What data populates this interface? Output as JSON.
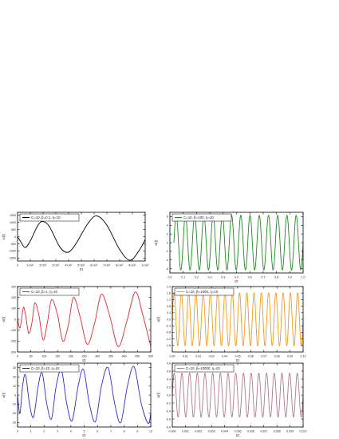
{
  "chart_data": [
    {
      "type": "line",
      "legend": "C=10, β=0.1, η=10",
      "legend_placement": "top-left",
      "xlabel": "t/τ",
      "ylabel": "u(t)",
      "color": "#000000",
      "xlim": [
        0,
        10
      ],
      "ylim": [
        -1700,
        1700
      ],
      "xticks": [
        0,
        1,
        2,
        3,
        4,
        5,
        6,
        7,
        8,
        9,
        10
      ],
      "xtick_labels": [
        "0",
        "1×10⁵",
        "2×10⁵",
        "3×10⁵",
        "4×10⁵",
        "5×10⁵",
        "6×10⁵",
        "7×10⁵",
        "8×10⁵",
        "9×10⁵",
        "1×10⁶"
      ],
      "yticks": [
        -1500,
        -1000,
        -500,
        0,
        500,
        1000,
        1500
      ],
      "ytick_labels": [
        "-1500",
        "-1000",
        "-500",
        "0",
        "500",
        "1000",
        "1500"
      ],
      "points": [
        [
          0,
          0
        ],
        [
          0.25,
          -350
        ],
        [
          0.6,
          -760
        ],
        [
          1.0,
          -300
        ],
        [
          1.6,
          800
        ],
        [
          2.0,
          1050
        ],
        [
          2.5,
          700
        ],
        [
          3.3,
          -700
        ],
        [
          3.9,
          -1100
        ],
        [
          4.5,
          -600
        ],
        [
          5.5,
          900
        ],
        [
          6.2,
          1450
        ],
        [
          7.0,
          800
        ],
        [
          8.0,
          -900
        ],
        [
          8.8,
          -1650
        ],
        [
          9.5,
          -1000
        ],
        [
          10,
          -200
        ]
      ]
    },
    {
      "type": "line",
      "legend": "C=10, β=100, η=10",
      "legend_placement": "top-left",
      "xlabel": "t/τ",
      "ylabel": "u(t)",
      "color": "#1e8a1e",
      "xlim": [
        0,
        1
      ],
      "ylim": [
        -7,
        7
      ],
      "xticks": [
        0,
        0.1,
        0.2,
        0.3,
        0.4,
        0.5,
        0.6,
        0.7,
        0.8,
        0.9,
        1.0
      ],
      "xtick_labels": [
        "0.0",
        "0.1",
        "0.2",
        "0.3",
        "0.4",
        "0.5",
        "0.6",
        "0.7",
        "0.8",
        "0.9",
        "1.0"
      ],
      "yticks": [
        -6,
        -4,
        -2,
        0,
        2,
        4,
        6
      ],
      "ytick_labels": [
        "-6",
        "-4",
        "-2",
        "0",
        "2",
        "4",
        "6"
      ],
      "wave": {
        "start": 0.03,
        "end": 1.0,
        "cycles": 14,
        "amplitude": 6.3
      }
    },
    {
      "type": "line",
      "legend": "C=10, β=1, η=10",
      "legend_placement": "top-left",
      "xlabel": "t/τ",
      "ylabel": "u(t)",
      "color": "#e0262e",
      "xlim": [
        0,
        500
      ],
      "ylim": [
        -300,
        300
      ],
      "xticks": [
        0,
        50,
        100,
        150,
        200,
        250,
        300,
        350,
        400,
        450,
        500
      ],
      "xtick_labels": [
        "0",
        "50",
        "100",
        "150",
        "200",
        "250",
        "300",
        "350",
        "400",
        "450",
        "500"
      ],
      "yticks": [
        -300,
        -200,
        -100,
        0,
        100,
        200,
        300
      ],
      "ytick_labels": [
        "-300",
        "-200",
        "-100",
        "0",
        "100",
        "200",
        "300"
      ],
      "points": [
        [
          0,
          0
        ],
        [
          8,
          -80
        ],
        [
          14,
          -20
        ],
        [
          22,
          110
        ],
        [
          30,
          40
        ],
        [
          42,
          -130
        ],
        [
          54,
          -30
        ],
        [
          65,
          150
        ],
        [
          80,
          40
        ],
        [
          96,
          -190
        ],
        [
          112,
          -30
        ],
        [
          128,
          180
        ],
        [
          150,
          40
        ],
        [
          170,
          -200
        ],
        [
          190,
          -60
        ],
        [
          210,
          200
        ],
        [
          235,
          20
        ],
        [
          262,
          -230
        ],
        [
          290,
          -30
        ],
        [
          315,
          230
        ],
        [
          345,
          40
        ],
        [
          378,
          -250
        ],
        [
          410,
          -20
        ],
        [
          442,
          250
        ],
        [
          470,
          40
        ],
        [
          500,
          -250
        ]
      ]
    },
    {
      "type": "line",
      "legend": "C=10, β=1000, η=10",
      "legend_placement": "top-left",
      "xlabel": "t/τ",
      "ylabel": "u(t)",
      "color": "#f39a1e",
      "xlim": [
        0,
        0.1
      ],
      "ylim": [
        -2.0,
        2.0
      ],
      "xticks": [
        0,
        0.01,
        0.02,
        0.03,
        0.04,
        0.05,
        0.06,
        0.07,
        0.08,
        0.09,
        0.1
      ],
      "xtick_labels": [
        "0.00",
        "0.01",
        "0.02",
        "0.03",
        "0.04",
        "0.05",
        "0.06",
        "0.07",
        "0.08",
        "0.09",
        "0.10"
      ],
      "yticks": [
        -1.6,
        -1.2,
        -0.8,
        -0.4,
        0.0,
        0.4,
        0.8,
        1.2,
        1.6,
        2.0
      ],
      "ytick_labels": [
        "-1.6",
        "-1.2",
        "-0.8",
        "-0.4",
        "0.0",
        "0.4",
        "0.8",
        "1.2",
        "1.6",
        "2.0"
      ],
      "wave": {
        "start": 0.0,
        "end": 0.1,
        "cycles": 18,
        "amplitude": 1.62
      }
    },
    {
      "type": "line",
      "legend": "C=10, β=10, η=10",
      "legend_placement": "top-left",
      "xlabel": "t/τ",
      "ylabel": "u(t)",
      "color": "#2b2bd0",
      "xlim": [
        0,
        10
      ],
      "ylim": [
        -35,
        35
      ],
      "xticks": [
        0,
        1,
        2,
        3,
        4,
        5,
        6,
        7,
        8,
        9,
        10
      ],
      "xtick_labels": [
        "0",
        "1",
        "2",
        "3",
        "4",
        "5",
        "6",
        "7",
        "8",
        "9",
        "10"
      ],
      "yticks": [
        -30,
        -20,
        -10,
        0,
        10,
        20,
        30
      ],
      "ytick_labels": [
        "-30",
        "-20",
        "-10",
        "0",
        "10",
        "20",
        "30"
      ],
      "points": [
        [
          0,
          0
        ],
        [
          0.18,
          -20
        ],
        [
          0.38,
          10
        ],
        [
          0.6,
          22
        ],
        [
          0.9,
          -10
        ],
        [
          1.2,
          -24
        ],
        [
          1.55,
          10
        ],
        [
          1.85,
          24
        ],
        [
          2.2,
          -10
        ],
        [
          2.55,
          -26
        ],
        [
          2.9,
          10
        ],
        [
          3.3,
          27
        ],
        [
          3.7,
          -10
        ],
        [
          4.1,
          -28
        ],
        [
          4.55,
          10
        ],
        [
          4.95,
          28
        ],
        [
          5.4,
          -10
        ],
        [
          5.85,
          -29
        ],
        [
          6.3,
          10
        ],
        [
          6.8,
          30
        ],
        [
          7.3,
          -10
        ],
        [
          7.75,
          -30
        ],
        [
          8.25,
          10
        ],
        [
          8.75,
          31
        ],
        [
          9.3,
          -10
        ],
        [
          9.8,
          -31
        ],
        [
          10,
          -20
        ]
      ]
    },
    {
      "type": "line",
      "legend": "C=10, β=10000, η=10",
      "legend_placement": "top-left",
      "xlabel": "t/τ",
      "ylabel": "u(t)",
      "color": "#b07a86",
      "xlim": [
        0,
        0.01
      ],
      "ylim": [
        -0.8,
        0.8
      ],
      "xticks": [
        0,
        0.001,
        0.002,
        0.003,
        0.004,
        0.005,
        0.006,
        0.007,
        0.008,
        0.009,
        0.01
      ],
      "xtick_labels": [
        "0.000",
        "0.001",
        "0.002",
        "0.003",
        "0.004",
        "0.005",
        "0.006",
        "0.007",
        "0.008",
        "0.009",
        "0.010"
      ],
      "yticks": [
        -0.8,
        -0.6,
        -0.4,
        -0.2,
        0.0,
        0.2,
        0.4,
        0.6,
        0.8
      ],
      "ytick_labels": [
        "-0.8",
        "-0.6",
        "-0.4",
        "-0.2",
        "0.0",
        "0.2",
        "0.4",
        "0.6",
        "0.8"
      ],
      "wave": {
        "start": 0.0,
        "end": 0.01,
        "cycles": 17,
        "amplitude": 0.55
      }
    }
  ]
}
